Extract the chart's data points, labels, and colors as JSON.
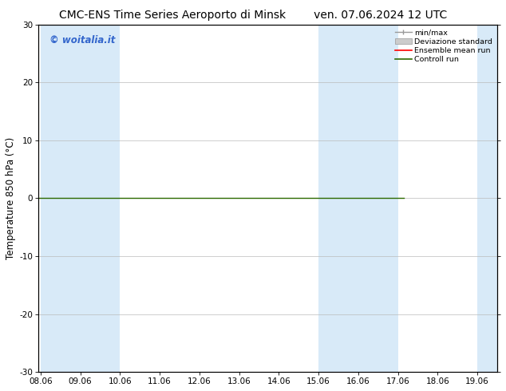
{
  "title_left": "CMC-ENS Time Series Aeroporto di Minsk",
  "title_right": "ven. 07.06.2024 12 UTC",
  "ylabel": "Temperature 850 hPa (°C)",
  "ylim": [
    -30,
    30
  ],
  "yticks": [
    -30,
    -20,
    -10,
    0,
    10,
    20,
    30
  ],
  "x_start": 8.06,
  "x_end": 19.06,
  "xtick_labels": [
    "08.06",
    "09.06",
    "10.06",
    "11.06",
    "12.06",
    "13.06",
    "14.06",
    "15.06",
    "16.06",
    "17.06",
    "18.06",
    "19.06"
  ],
  "xtick_values": [
    8.06,
    9.06,
    10.06,
    11.06,
    12.06,
    13.06,
    14.06,
    15.06,
    16.06,
    17.06,
    18.06,
    19.06
  ],
  "shaded_bands": [
    [
      8.06,
      9.06
    ],
    [
      9.06,
      10.06
    ],
    [
      15.06,
      16.06
    ],
    [
      16.06,
      17.06
    ],
    [
      19.06,
      19.56
    ]
  ],
  "line_y": 0.0,
  "line_color_control": "#2d6a00",
  "line_color_ensemble": "#ff0000",
  "shade_color": "#d8eaf8",
  "background_color": "#ffffff",
  "plot_bg_color": "#ffffff",
  "watermark_text": "© woitalia.it",
  "watermark_color": "#3366cc",
  "legend_entries": [
    "min/max",
    "Deviazione standard",
    "Ensemble mean run",
    "Controll run"
  ],
  "legend_colors_line": [
    "#888888",
    "#aaaaaa",
    "#ff0000",
    "#2d6a00"
  ],
  "title_fontsize": 10,
  "axis_fontsize": 8.5,
  "tick_fontsize": 7.5
}
